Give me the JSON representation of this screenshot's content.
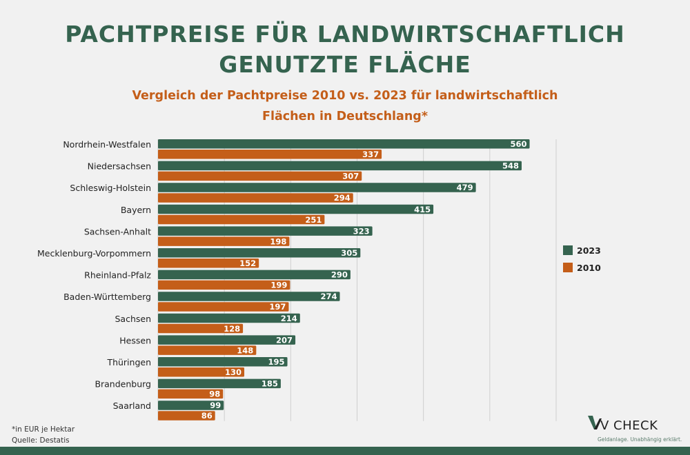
{
  "chart_data": {
    "type": "bar",
    "orientation": "horizontal",
    "title": "PACHTPREISE FÜR LANDWIRTSCHAFTLICH GENUTZTE FLÄCHE",
    "subtitle": "Vergleich der Pachtpreise 2010 vs. 2023 für landwirtschaftlich Flächen in Deutschlang*",
    "categories": [
      "Nordrhein-Westfalen",
      "Niedersachsen",
      "Schleswig-Holstein",
      "Bayern",
      "Sachsen-Anhalt",
      "Mecklenburg-Vorpommern",
      "Rheinland-Pfalz",
      "Baden-Württemberg",
      "Sachsen",
      "Hessen",
      "Thüringen",
      "Brandenburg",
      "Saarland"
    ],
    "series": [
      {
        "name": "2023",
        "color": "#35634f",
        "values": [
          560,
          548,
          479,
          415,
          323,
          305,
          290,
          274,
          214,
          207,
          195,
          185,
          99
        ]
      },
      {
        "name": "2010",
        "color": "#c45e19",
        "values": [
          337,
          307,
          294,
          251,
          198,
          152,
          199,
          197,
          128,
          148,
          130,
          98,
          86
        ]
      }
    ],
    "xlim": [
      0,
      600
    ],
    "grid": true,
    "legend_position": "right",
    "data_labels": true
  },
  "footnotes": {
    "unit": "*in EUR je Hektar",
    "source": "Quelle: Destatis"
  },
  "logo": {
    "name": "V CHECK",
    "tagline": "Geldanlage. Unabhängig erklärt."
  }
}
